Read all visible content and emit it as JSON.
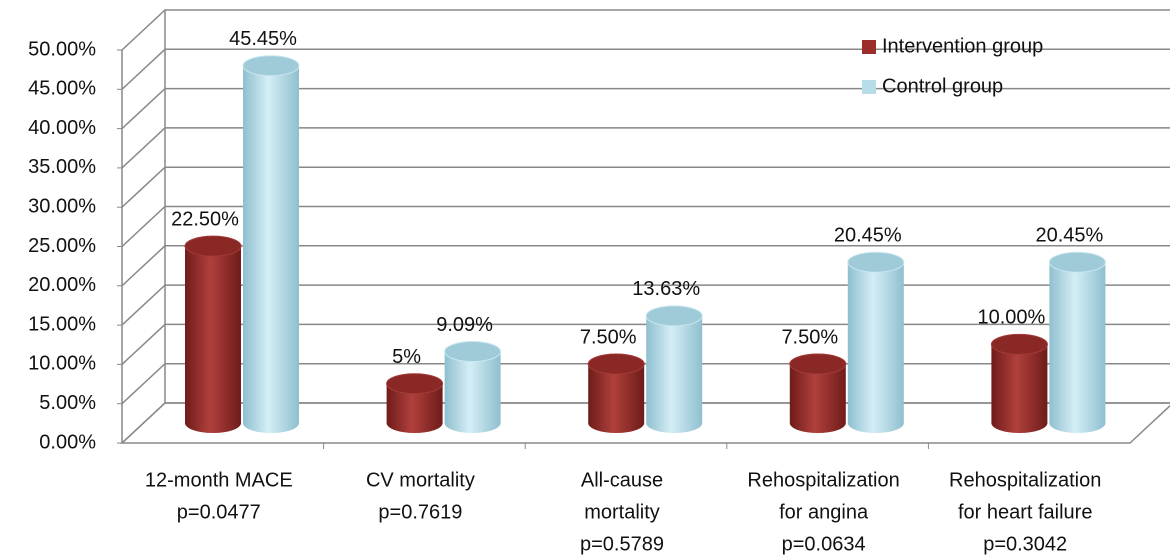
{
  "chart_data": {
    "type": "bar3d",
    "categories": [
      [
        "12-month MACE",
        "p=0.0477"
      ],
      [
        "CV mortality",
        "p=0.7619"
      ],
      [
        "All-cause",
        "mortality",
        "p=0.5789"
      ],
      [
        "Rehospitalization",
        "for angina",
        "p=0.0634"
      ],
      [
        "Rehospitalization",
        "for heart failure",
        "p=0.3042"
      ]
    ],
    "series": [
      {
        "name": "Intervention group",
        "color": "#9b2d2a",
        "values": [
          22.5,
          5,
          7.5,
          7.5,
          10
        ],
        "value_labels": [
          "22.50%",
          "5%",
          "7.50%",
          "7.50%",
          "10.00%"
        ]
      },
      {
        "name": "Control group",
        "color": "#b7dde8",
        "values": [
          45.45,
          9.09,
          13.63,
          20.45,
          20.45
        ],
        "value_labels": [
          "45.45%",
          "9.09%",
          "13.63%",
          "20.45%",
          "20.45%"
        ]
      }
    ],
    "ylim": [
      0,
      50
    ],
    "yticks": [
      {
        "value": 0,
        "label": "0.00%"
      },
      {
        "value": 5,
        "label": "5.00%"
      },
      {
        "value": 10,
        "label": "10.00%"
      },
      {
        "value": 15,
        "label": "15.00%"
      },
      {
        "value": 20,
        "label": "20.00%"
      },
      {
        "value": 25,
        "label": "25.00%"
      },
      {
        "value": 30,
        "label": "30.00%"
      },
      {
        "value": 35,
        "label": "35.00%"
      },
      {
        "value": 40,
        "label": "40.00%"
      },
      {
        "value": 45,
        "label": "45.00%"
      },
      {
        "value": 50,
        "label": "50.00%"
      }
    ],
    "grid": true,
    "legend": "upper right"
  }
}
